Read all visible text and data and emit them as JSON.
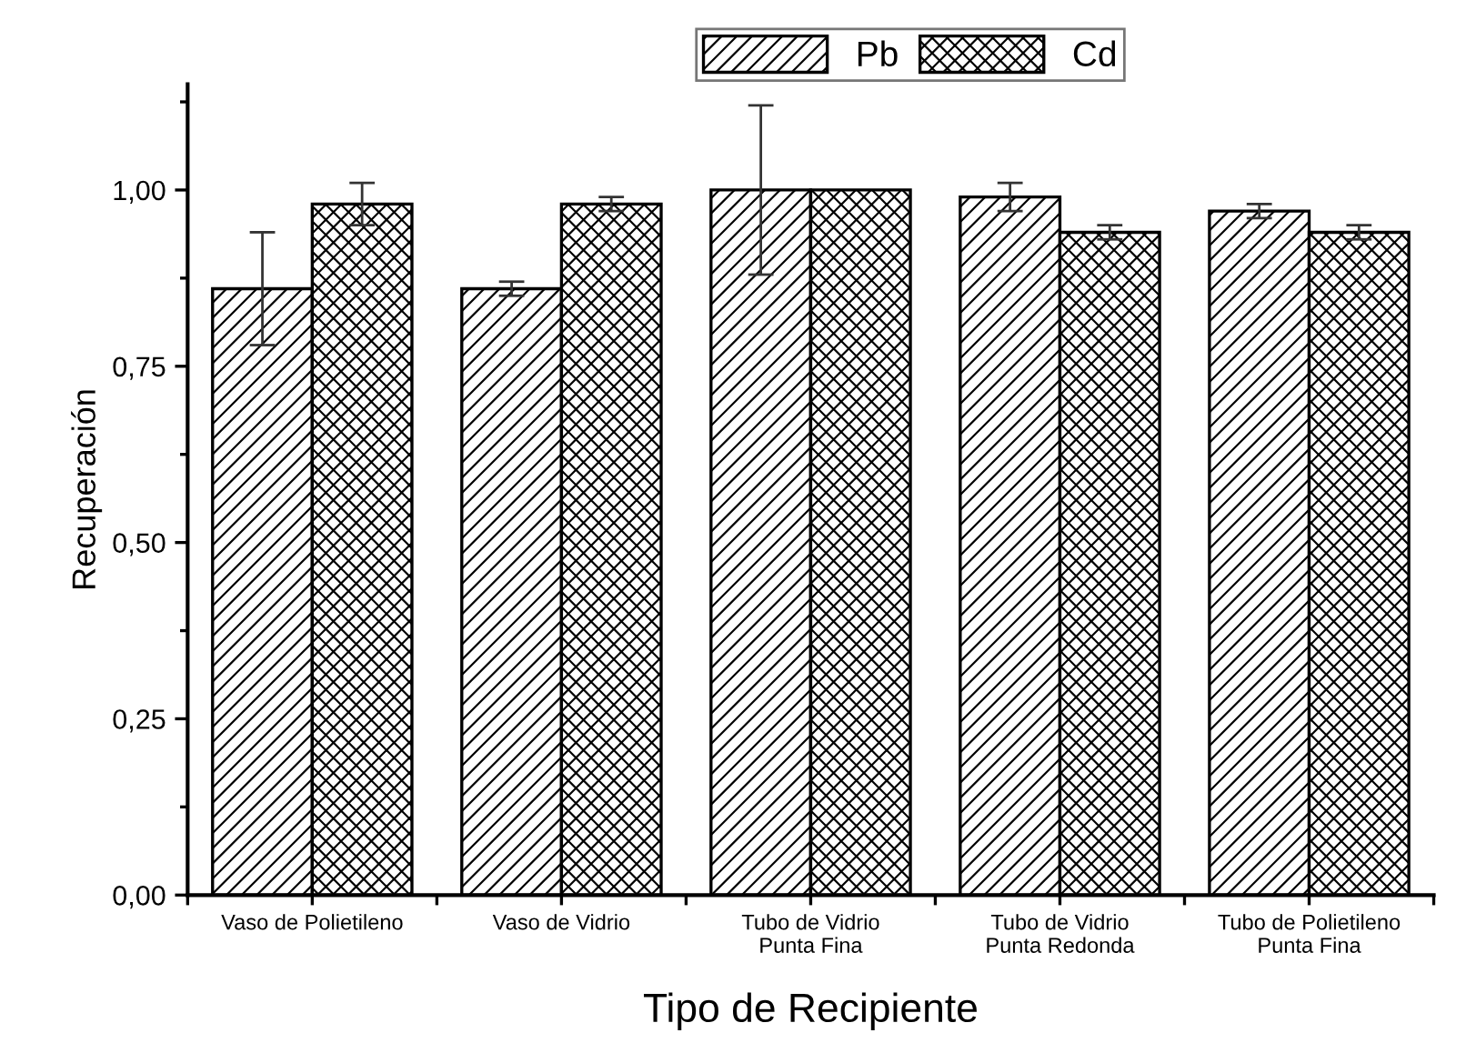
{
  "chart_data": {
    "type": "bar",
    "xlabel": "Tipo de Recipiente",
    "ylabel": "Recuperación",
    "categories": [
      "Vaso de Polietileno",
      "Vaso de Vidrio",
      "Tubo de Vidrio\nPunta Fina",
      "Tubo de Vidrio\nPunta Redonda",
      "Tubo de Polietileno\nPunta Fina"
    ],
    "series": [
      {
        "name": "Pb",
        "color": "#000000",
        "values": [
          0.86,
          0.86,
          1.0,
          0.99,
          0.97
        ],
        "errors": [
          0.08,
          0.01,
          0.12,
          0.02,
          0.01
        ]
      },
      {
        "name": "Cd",
        "color": "#000000",
        "values": [
          0.98,
          0.98,
          1.0,
          0.94,
          0.94
        ],
        "errors": [
          0.03,
          0.01,
          null,
          0.01,
          0.01
        ]
      }
    ],
    "ylim": [
      0,
      1.15
    ],
    "yticks": [
      {
        "value": 0,
        "label": "0,00"
      },
      {
        "value": 0.25,
        "label": "0,25"
      },
      {
        "value": 0.5,
        "label": "0,50"
      },
      {
        "value": 0.75,
        "label": "0,75"
      },
      {
        "value": 1.0,
        "label": "1,00"
      }
    ],
    "grid": false,
    "legend": "top"
  }
}
